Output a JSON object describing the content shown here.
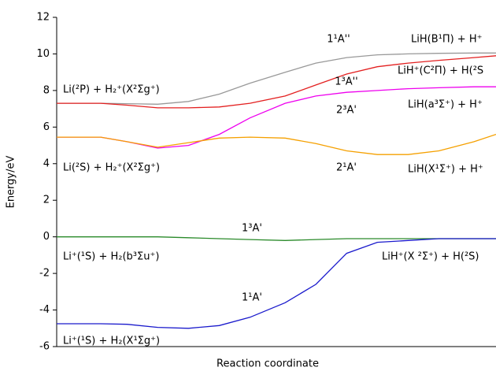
{
  "chart_data": {
    "type": "line",
    "xlabel": "Reaction coordinate",
    "ylabel": "Energy/eV",
    "x": [
      0,
      5,
      10,
      16,
      23,
      30,
      37,
      44,
      52,
      59,
      66,
      73,
      80,
      87,
      95,
      100
    ],
    "xlim": [
      0,
      100
    ],
    "ylim": [
      -6,
      12
    ],
    "yticks": [
      -6,
      -4,
      -2,
      0,
      2,
      4,
      6,
      8,
      10,
      12
    ],
    "series": [
      {
        "name": "1¹A''",
        "color": "#999999",
        "values": [
          7.3,
          7.3,
          7.3,
          7.28,
          7.25,
          7.4,
          7.8,
          8.4,
          9.0,
          9.5,
          9.8,
          9.95,
          10.0,
          10.03,
          10.05,
          10.05
        ]
      },
      {
        "name": "1³A''",
        "color": "#e32020",
        "values": [
          7.3,
          7.3,
          7.3,
          7.2,
          7.05,
          7.05,
          7.1,
          7.3,
          7.7,
          8.3,
          8.9,
          9.3,
          9.5,
          9.65,
          9.8,
          9.9
        ]
      },
      {
        "name": "2³A'",
        "color": "#ee00ee",
        "values": [
          5.45,
          5.45,
          5.45,
          5.2,
          4.85,
          5.0,
          5.6,
          6.5,
          7.3,
          7.7,
          7.9,
          8.0,
          8.1,
          8.15,
          8.2,
          8.2
        ]
      },
      {
        "name": "2¹A'",
        "color": "#f5a000",
        "values": [
          5.45,
          5.45,
          5.45,
          5.2,
          4.9,
          5.15,
          5.4,
          5.45,
          5.4,
          5.1,
          4.7,
          4.5,
          4.5,
          4.7,
          5.2,
          5.6
        ]
      },
      {
        "name": "1³A'",
        "color": "#2a8a2a",
        "values": [
          0,
          0,
          0,
          0,
          0,
          -0.05,
          -0.1,
          -0.15,
          -0.2,
          -0.15,
          -0.1,
          -0.1,
          -0.1,
          -0.1,
          -0.1,
          -0.1
        ]
      },
      {
        "name": "1¹A'",
        "color": "#1a1acc",
        "values": [
          -4.75,
          -4.75,
          -4.75,
          -4.78,
          -4.95,
          -5.0,
          -4.85,
          -4.4,
          -3.6,
          -2.6,
          -0.9,
          -0.3,
          -0.2,
          -0.1,
          -0.1,
          -0.1
        ]
      }
    ],
    "annotations": [
      {
        "text": "Li(²P) + H₂⁺(X²Σg⁺)",
        "color": "#000000"
      },
      {
        "text": "Li(²S) + H₂⁺(X²Σg⁺)",
        "color": "#000000"
      },
      {
        "text": "Li⁺(¹S) + H₂(b³Σu⁺)",
        "color": "#000000"
      },
      {
        "text": "Li⁺(¹S) + H₂(X¹Σg⁺)",
        "color": "#000000"
      },
      {
        "text": "LiH(B¹Π) + H⁺",
        "color": "#999999"
      },
      {
        "text": "LiH⁺(C²Π) + H(²S",
        "color": "#e32020"
      },
      {
        "text": "LiH(a³Σ⁺) + H⁺",
        "color": "#000000"
      },
      {
        "text": "LiH(X¹Σ⁺) + H⁺",
        "color": "#000000"
      },
      {
        "text": "LiH⁺(X ²Σ⁺) + H(²S)",
        "color": "#000000"
      }
    ]
  }
}
